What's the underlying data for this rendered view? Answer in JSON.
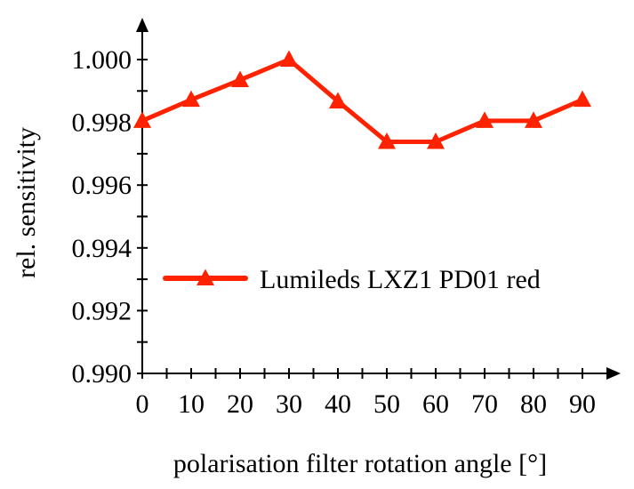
{
  "chart_data": {
    "type": "line",
    "xlabel": "polarisation filter rotation angle [°]",
    "ylabel": "rel. sensitivity",
    "x": [
      0,
      10,
      20,
      30,
      40,
      50,
      60,
      70,
      80,
      90
    ],
    "x_tick_labels": [
      "0",
      "10",
      "20",
      "30",
      "40",
      "50",
      "60",
      "70",
      "80",
      "90"
    ],
    "y_tick_labels": [
      "1.000",
      "0.998",
      "0.996",
      "0.994",
      "0.992",
      "0.990"
    ],
    "y_ticks": [
      1.0,
      0.998,
      0.996,
      0.994,
      0.992,
      0.99
    ],
    "xlim": [
      0,
      90
    ],
    "ylim": [
      0.99,
      1.0
    ],
    "grid": false,
    "legend_position": "center-left",
    "series": [
      {
        "name": "Lumileds LXZ1 PD01 red",
        "color": "#ff2200",
        "marker": "triangle",
        "values": [
          0.99805,
          0.99872,
          0.99935,
          1.0,
          0.99867,
          0.99738,
          0.99738,
          0.99805,
          0.99805,
          0.99872
        ]
      }
    ]
  }
}
